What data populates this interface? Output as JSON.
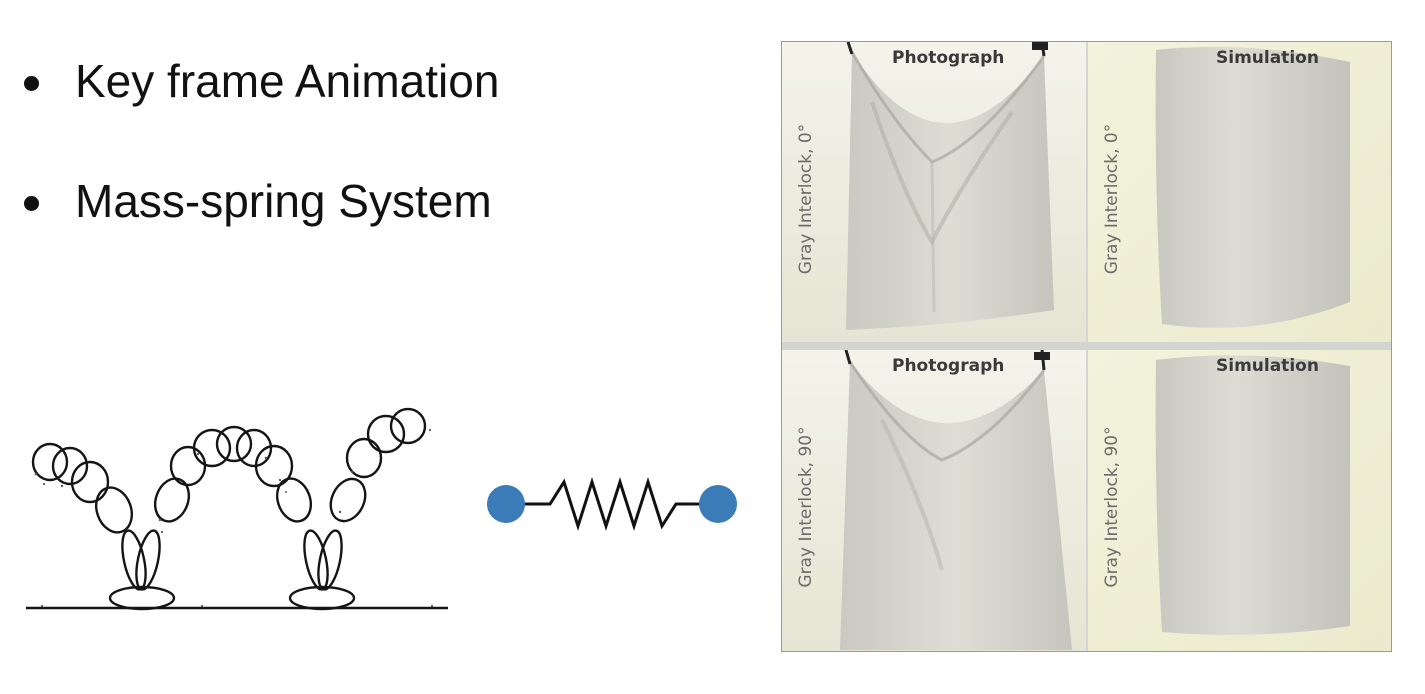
{
  "bullets": [
    {
      "text": "Key frame Animation"
    },
    {
      "text": "Mass-spring System"
    }
  ],
  "figures": {
    "spring": {
      "mass_color": "#3b7bb8",
      "spring_color": "#111111"
    },
    "cloth_panels": [
      {
        "title": "Photograph",
        "label": "Gray Interlock, 0°"
      },
      {
        "title": "Simulation",
        "label": "Gray Interlock, 0°"
      },
      {
        "title": "Photograph",
        "label": "Gray Interlock, 90°"
      },
      {
        "title": "Simulation",
        "label": "Gray Interlock, 90°"
      }
    ]
  }
}
